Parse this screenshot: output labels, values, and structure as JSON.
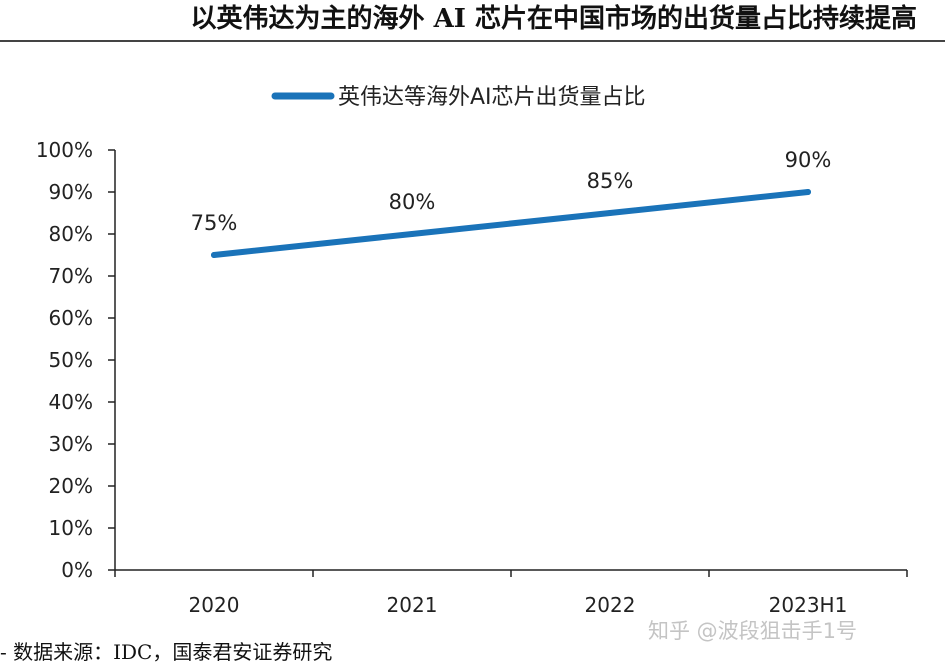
{
  "title": "以英伟达为主的海外 AI 芯片在中国市场的出货量占比持续提高",
  "source": "- 数据来源：IDC，国泰君安证券研究",
  "watermark": "知乎 @波段狙击手1号",
  "colors": {
    "series": "#1a73b9",
    "axis": "#222222",
    "text": "#222222"
  },
  "chart_data": {
    "type": "line",
    "categories": [
      "2020",
      "2021",
      "2022",
      "2023H1"
    ],
    "series": [
      {
        "name": "英伟达等海外AI芯片出货量占比",
        "values": [
          75,
          80,
          85,
          90
        ],
        "labels": [
          "75%",
          "80%",
          "85%",
          "90%"
        ]
      }
    ],
    "ylim": [
      0,
      100
    ],
    "yticks": [
      "0%",
      "10%",
      "20%",
      "30%",
      "40%",
      "50%",
      "60%",
      "70%",
      "80%",
      "90%",
      "100%"
    ],
    "legend": "top-center",
    "grid": false
  }
}
